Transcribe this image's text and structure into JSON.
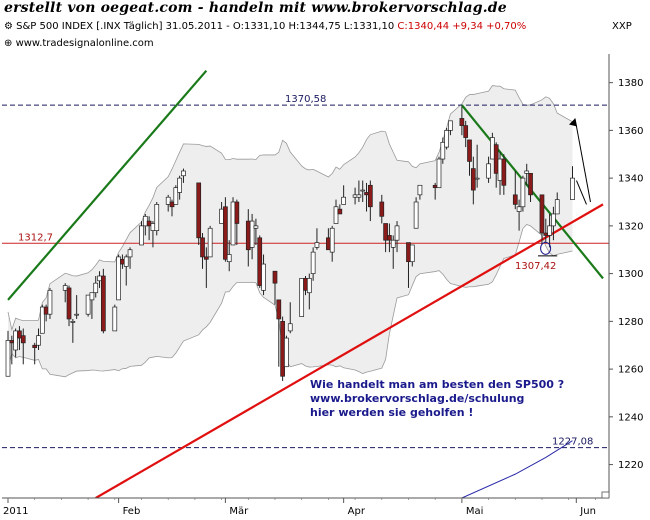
{
  "banner": "erstellt von oegeat.com - handeln mit www.brokervorschlag.de",
  "header": {
    "title": "S&P 500 INDEX [.INX Täglich] 31.05.2011 - O:1331,10 H:1344,75 L:1331,10",
    "change": "C:1340,44 +9,34 +0,70%"
  },
  "source_label": "www.tradesignalonline.com",
  "axis_code": "XXP",
  "note": {
    "line1": "Wie handelt man am besten den SP500 ?",
    "line2": "www.brokervorschlag.de/schulung",
    "line3": "hier werden sie geholfen !"
  },
  "colors": {
    "up_candle": "#ffffff",
    "down_candle": "#8b1a1a",
    "support_line": "#e01010",
    "channel_line": "#1a7a1a",
    "band_fill": "#eeeeee",
    "band_edge": "#9a9a9a",
    "level_line": "#cc2222",
    "dashed_level": "#1a1a60",
    "ma_line": "#2a2aa8"
  },
  "icons": [
    "settings-icon",
    "crosshair-icon"
  ],
  "chart_data": {
    "type": "candlestick",
    "title": "",
    "xlabel": "",
    "ylabel": "",
    "ylim": [
      1206,
      1392
    ],
    "y_ticks": [
      1220,
      1240,
      1260,
      1280,
      1300,
      1320,
      1340,
      1360,
      1380
    ],
    "x_tick_labels": [
      "2011",
      "Feb",
      "Mär",
      "Apr",
      "Mai",
      "Jun"
    ],
    "x_tick_dates": [
      "2011-01-03",
      "2011-02-01",
      "2011-03-01",
      "2011-04-01",
      "2011-05-02",
      "2011-06-01"
    ],
    "x_range": [
      "2011-01-03",
      "2011-06-08"
    ],
    "legend": "none",
    "grid": false,
    "candles": [
      {
        "date": "2011-01-03",
        "o": 1257,
        "h": 1276,
        "l": 1257,
        "c": 1272
      },
      {
        "date": "2011-01-04",
        "o": 1272,
        "h": 1274,
        "l": 1262,
        "c": 1271
      },
      {
        "date": "2011-01-05",
        "o": 1268,
        "h": 1277,
        "l": 1265,
        "c": 1276
      },
      {
        "date": "2011-01-06",
        "o": 1276,
        "h": 1278,
        "l": 1268,
        "c": 1273
      },
      {
        "date": "2011-01-07",
        "o": 1274,
        "h": 1277,
        "l": 1262,
        "c": 1271
      },
      {
        "date": "2011-01-10",
        "o": 1270,
        "h": 1271,
        "l": 1262,
        "c": 1269
      },
      {
        "date": "2011-01-11",
        "o": 1270,
        "h": 1277,
        "l": 1268,
        "c": 1274
      },
      {
        "date": "2011-01-12",
        "o": 1275,
        "h": 1287,
        "l": 1275,
        "c": 1286
      },
      {
        "date": "2011-01-13",
        "o": 1286,
        "h": 1287,
        "l": 1280,
        "c": 1283
      },
      {
        "date": "2011-01-14",
        "o": 1283,
        "h": 1294,
        "l": 1281,
        "c": 1293
      },
      {
        "date": "2011-01-18",
        "o": 1293,
        "h": 1296,
        "l": 1288,
        "c": 1295
      },
      {
        "date": "2011-01-19",
        "o": 1294,
        "h": 1295,
        "l": 1278,
        "c": 1281
      },
      {
        "date": "2011-01-20",
        "o": 1280,
        "h": 1281,
        "l": 1271,
        "c": 1280
      },
      {
        "date": "2011-01-21",
        "o": 1283,
        "h": 1291,
        "l": 1281,
        "c": 1283
      },
      {
        "date": "2011-01-24",
        "o": 1283,
        "h": 1291,
        "l": 1282,
        "c": 1291
      },
      {
        "date": "2011-01-25",
        "o": 1289,
        "h": 1292,
        "l": 1281,
        "c": 1292
      },
      {
        "date": "2011-01-26",
        "o": 1292,
        "h": 1299,
        "l": 1290,
        "c": 1296
      },
      {
        "date": "2011-01-27",
        "o": 1297,
        "h": 1301,
        "l": 1294,
        "c": 1299
      },
      {
        "date": "2011-01-28",
        "o": 1299,
        "h": 1302,
        "l": 1275,
        "c": 1276
      },
      {
        "date": "2011-01-31",
        "o": 1276,
        "h": 1287,
        "l": 1276,
        "c": 1286
      },
      {
        "date": "2011-02-01",
        "o": 1289,
        "h": 1308,
        "l": 1289,
        "c": 1307
      },
      {
        "date": "2011-02-02",
        "o": 1306,
        "h": 1308,
        "l": 1302,
        "c": 1304
      },
      {
        "date": "2011-02-03",
        "o": 1303,
        "h": 1308,
        "l": 1295,
        "c": 1307
      },
      {
        "date": "2011-02-04",
        "o": 1307,
        "h": 1311,
        "l": 1302,
        "c": 1310
      },
      {
        "date": "2011-02-07",
        "o": 1312,
        "h": 1322,
        "l": 1312,
        "c": 1320
      },
      {
        "date": "2011-02-08",
        "o": 1320,
        "h": 1325,
        "l": 1316,
        "c": 1324
      },
      {
        "date": "2011-02-09",
        "o": 1322,
        "h": 1324,
        "l": 1314,
        "c": 1320
      },
      {
        "date": "2011-02-10",
        "o": 1318,
        "h": 1322,
        "l": 1311,
        "c": 1321
      },
      {
        "date": "2011-02-11",
        "o": 1318,
        "h": 1330,
        "l": 1316,
        "c": 1329
      },
      {
        "date": "2011-02-14",
        "o": 1329,
        "h": 1333,
        "l": 1326,
        "c": 1332
      },
      {
        "date": "2011-02-15",
        "o": 1330,
        "h": 1331,
        "l": 1324,
        "c": 1328
      },
      {
        "date": "2011-02-16",
        "o": 1329,
        "h": 1337,
        "l": 1329,
        "c": 1336
      },
      {
        "date": "2011-02-17",
        "o": 1334,
        "h": 1341,
        "l": 1331,
        "c": 1340
      },
      {
        "date": "2011-02-18",
        "o": 1341,
        "h": 1344,
        "l": 1338,
        "c": 1343
      },
      {
        "date": "2011-02-22",
        "o": 1338,
        "h": 1338,
        "l": 1312,
        "c": 1315
      },
      {
        "date": "2011-02-23",
        "o": 1315,
        "h": 1317,
        "l": 1302,
        "c": 1307
      },
      {
        "date": "2011-02-24",
        "o": 1307,
        "h": 1311,
        "l": 1294,
        "c": 1306
      },
      {
        "date": "2011-02-25",
        "o": 1307,
        "h": 1320,
        "l": 1307,
        "c": 1319
      },
      {
        "date": "2011-02-28",
        "o": 1321,
        "h": 1330,
        "l": 1321,
        "c": 1327
      },
      {
        "date": "2011-03-01",
        "o": 1328,
        "h": 1332,
        "l": 1305,
        "c": 1306
      },
      {
        "date": "2011-03-02",
        "o": 1305,
        "h": 1314,
        "l": 1301,
        "c": 1308
      },
      {
        "date": "2011-03-03",
        "o": 1312,
        "h": 1332,
        "l": 1312,
        "c": 1330
      },
      {
        "date": "2011-03-04",
        "o": 1330,
        "h": 1331,
        "l": 1312,
        "c": 1321
      },
      {
        "date": "2011-03-07",
        "o": 1322,
        "h": 1327,
        "l": 1303,
        "c": 1310
      },
      {
        "date": "2011-03-08",
        "o": 1311,
        "h": 1325,
        "l": 1306,
        "c": 1322
      },
      {
        "date": "2011-03-09",
        "o": 1319,
        "h": 1323,
        "l": 1312,
        "c": 1320
      },
      {
        "date": "2011-03-10",
        "o": 1315,
        "h": 1316,
        "l": 1294,
        "c": 1295
      },
      {
        "date": "2011-03-11",
        "o": 1293,
        "h": 1308,
        "l": 1291,
        "c": 1304
      },
      {
        "date": "2011-03-14",
        "o": 1301,
        "h": 1301,
        "l": 1287,
        "c": 1296
      },
      {
        "date": "2011-03-15",
        "o": 1289,
        "h": 1289,
        "l": 1261,
        "c": 1281
      },
      {
        "date": "2011-03-16",
        "o": 1280,
        "h": 1282,
        "l": 1255,
        "c": 1257
      },
      {
        "date": "2011-03-17",
        "o": 1261,
        "h": 1274,
        "l": 1261,
        "c": 1273
      },
      {
        "date": "2011-03-18",
        "o": 1276,
        "h": 1288,
        "l": 1275,
        "c": 1279
      },
      {
        "date": "2011-03-21",
        "o": 1282,
        "h": 1298,
        "l": 1282,
        "c": 1298
      },
      {
        "date": "2011-03-22",
        "o": 1298,
        "h": 1299,
        "l": 1291,
        "c": 1293
      },
      {
        "date": "2011-03-23",
        "o": 1292,
        "h": 1300,
        "l": 1285,
        "c": 1298
      },
      {
        "date": "2011-03-24",
        "o": 1300,
        "h": 1311,
        "l": 1297,
        "c": 1309
      },
      {
        "date": "2011-03-25",
        "o": 1311,
        "h": 1319,
        "l": 1310,
        "c": 1313
      },
      {
        "date": "2011-03-28",
        "o": 1315,
        "h": 1319,
        "l": 1310,
        "c": 1310
      },
      {
        "date": "2011-03-29",
        "o": 1309,
        "h": 1320,
        "l": 1305,
        "c": 1319
      },
      {
        "date": "2011-03-30",
        "o": 1321,
        "h": 1331,
        "l": 1321,
        "c": 1328
      },
      {
        "date": "2011-03-31",
        "o": 1327,
        "h": 1329,
        "l": 1325,
        "c": 1325
      },
      {
        "date": "2011-04-01",
        "o": 1329,
        "h": 1337,
        "l": 1329,
        "c": 1332
      },
      {
        "date": "2011-04-04",
        "o": 1332,
        "h": 1336,
        "l": 1329,
        "c": 1333
      },
      {
        "date": "2011-04-05",
        "o": 1332,
        "h": 1339,
        "l": 1330,
        "c": 1333
      },
      {
        "date": "2011-04-06",
        "o": 1335,
        "h": 1339,
        "l": 1330,
        "c": 1335
      },
      {
        "date": "2011-04-07",
        "o": 1334,
        "h": 1338,
        "l": 1326,
        "c": 1333
      },
      {
        "date": "2011-04-08",
        "o": 1337,
        "h": 1339,
        "l": 1322,
        "c": 1328
      },
      {
        "date": "2011-04-11",
        "o": 1330,
        "h": 1333,
        "l": 1321,
        "c": 1324
      },
      {
        "date": "2011-04-12",
        "o": 1321,
        "h": 1321,
        "l": 1309,
        "c": 1314
      },
      {
        "date": "2011-04-13",
        "o": 1316,
        "h": 1321,
        "l": 1309,
        "c": 1314
      },
      {
        "date": "2011-04-14",
        "o": 1311,
        "h": 1316,
        "l": 1302,
        "c": 1314
      },
      {
        "date": "2011-04-15",
        "o": 1314,
        "h": 1322,
        "l": 1309,
        "c": 1320
      },
      {
        "date": "2011-04-18",
        "o": 1313,
        "h": 1313,
        "l": 1294,
        "c": 1305
      },
      {
        "date": "2011-04-19",
        "o": 1305,
        "h": 1312,
        "l": 1303,
        "c": 1312
      },
      {
        "date": "2011-04-20",
        "o": 1319,
        "h": 1332,
        "l": 1319,
        "c": 1330
      },
      {
        "date": "2011-04-21",
        "o": 1333,
        "h": 1337,
        "l": 1331,
        "c": 1337
      },
      {
        "date": "2011-04-25",
        "o": 1337,
        "h": 1338,
        "l": 1331,
        "c": 1336
      },
      {
        "date": "2011-04-26",
        "o": 1336,
        "h": 1349,
        "l": 1336,
        "c": 1348
      },
      {
        "date": "2011-04-27",
        "o": 1348,
        "h": 1357,
        "l": 1346,
        "c": 1355
      },
      {
        "date": "2011-04-28",
        "o": 1353,
        "h": 1361,
        "l": 1352,
        "c": 1360
      },
      {
        "date": "2011-04-29",
        "o": 1360,
        "h": 1364,
        "l": 1358,
        "c": 1364
      },
      {
        "date": "2011-05-02",
        "o": 1365,
        "h": 1370,
        "l": 1358,
        "c": 1362
      },
      {
        "date": "2011-05-03",
        "o": 1362,
        "h": 1364,
        "l": 1353,
        "c": 1357
      },
      {
        "date": "2011-05-04",
        "o": 1356,
        "h": 1356,
        "l": 1341,
        "c": 1347
      },
      {
        "date": "2011-05-05",
        "o": 1344,
        "h": 1349,
        "l": 1329,
        "c": 1335
      },
      {
        "date": "2011-05-06",
        "o": 1340,
        "h": 1354,
        "l": 1336,
        "c": 1340
      },
      {
        "date": "2011-05-09",
        "o": 1340,
        "h": 1349,
        "l": 1338,
        "c": 1346
      },
      {
        "date": "2011-05-10",
        "o": 1348,
        "h": 1359,
        "l": 1348,
        "c": 1357
      },
      {
        "date": "2011-05-11",
        "o": 1354,
        "h": 1355,
        "l": 1336,
        "c": 1342
      },
      {
        "date": "2011-05-12",
        "o": 1339,
        "h": 1351,
        "l": 1333,
        "c": 1348
      },
      {
        "date": "2011-05-13",
        "o": 1348,
        "h": 1350,
        "l": 1333,
        "c": 1337
      },
      {
        "date": "2011-05-16",
        "o": 1333,
        "h": 1343,
        "l": 1327,
        "c": 1329
      },
      {
        "date": "2011-05-17",
        "o": 1326,
        "h": 1331,
        "l": 1318,
        "c": 1328
      },
      {
        "date": "2011-05-18",
        "o": 1328,
        "h": 1341,
        "l": 1326,
        "c": 1340
      },
      {
        "date": "2011-05-19",
        "o": 1342,
        "h": 1346,
        "l": 1337,
        "c": 1343
      },
      {
        "date": "2011-05-20",
        "o": 1342,
        "h": 1342,
        "l": 1330,
        "c": 1333
      },
      {
        "date": "2011-05-23",
        "o": 1333,
        "h": 1333,
        "l": 1312,
        "c": 1317
      },
      {
        "date": "2011-05-24",
        "o": 1317,
        "h": 1323,
        "l": 1313,
        "c": 1316
      },
      {
        "date": "2011-05-25",
        "o": 1316,
        "h": 1325,
        "l": 1311,
        "c": 1320
      },
      {
        "date": "2011-05-26",
        "o": 1320,
        "h": 1328,
        "l": 1314,
        "c": 1325
      },
      {
        "date": "2011-05-27",
        "o": 1325,
        "h": 1334,
        "l": 1325,
        "c": 1331
      },
      {
        "date": "2011-05-31",
        "o": 1331,
        "h": 1345,
        "l": 1331,
        "c": 1340
      }
    ],
    "levels": [
      {
        "label": "1370,58",
        "value": 1370.58,
        "style": "dashed"
      },
      {
        "label": "1312,7",
        "value": 1312.7,
        "style": "solid"
      },
      {
        "label": "1307,42",
        "value": 1307.42,
        "style": "short"
      },
      {
        "label": "1227,08",
        "value": 1227.08,
        "style": "dashed"
      }
    ],
    "channel_line": {
      "start": {
        "date": "2011-01-03",
        "value": 1289
      },
      "end": {
        "date": "2011-02-24",
        "value": 1385
      }
    },
    "downtrend_line": {
      "start": {
        "date": "2011-05-02",
        "value": 1370.58
      },
      "end": {
        "date": "2011-06-08",
        "value": 1298
      }
    },
    "support_line": {
      "start": {
        "date": "2011-01-26",
        "value": 1206
      },
      "end": {
        "date": "2011-06-08",
        "value": 1329
      }
    },
    "moving_average": [
      {
        "date": "2011-05-02",
        "value": 1206
      },
      {
        "date": "2011-05-16",
        "value": 1216
      },
      {
        "date": "2011-05-24",
        "value": 1223
      },
      {
        "date": "2011-05-31",
        "value": 1230
      }
    ]
  }
}
